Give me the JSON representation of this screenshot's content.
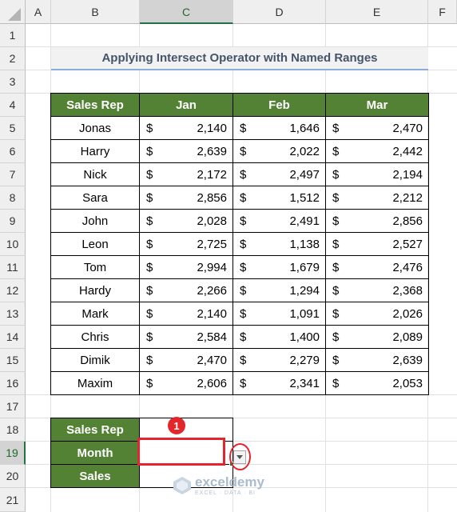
{
  "columns": [
    "A",
    "B",
    "C",
    "D",
    "E",
    "F"
  ],
  "selected_column": "C",
  "rows": [
    "1",
    "2",
    "3",
    "4",
    "5",
    "6",
    "7",
    "8",
    "9",
    "10",
    "11",
    "12",
    "13",
    "14",
    "15",
    "16",
    "17",
    "18",
    "19",
    "20",
    "21"
  ],
  "selected_row": "19",
  "title": "Applying Intersect Operator with Named Ranges",
  "table": {
    "headers": [
      "Sales Rep",
      "Jan",
      "Feb",
      "Mar"
    ],
    "currency": "$",
    "rows": [
      {
        "name": "Jonas",
        "jan": "2,140",
        "feb": "1,646",
        "mar": "2,470"
      },
      {
        "name": "Harry",
        "jan": "2,639",
        "feb": "2,022",
        "mar": "2,442"
      },
      {
        "name": "Nick",
        "jan": "2,172",
        "feb": "2,497",
        "mar": "2,194"
      },
      {
        "name": "Sara",
        "jan": "2,856",
        "feb": "1,512",
        "mar": "2,212"
      },
      {
        "name": "John",
        "jan": "2,028",
        "feb": "2,491",
        "mar": "2,856"
      },
      {
        "name": "Leon",
        "jan": "2,725",
        "feb": "1,138",
        "mar": "2,527"
      },
      {
        "name": "Tom",
        "jan": "2,994",
        "feb": "1,679",
        "mar": "2,476"
      },
      {
        "name": "Hardy",
        "jan": "2,266",
        "feb": "1,294",
        "mar": "2,368"
      },
      {
        "name": "Mark",
        "jan": "2,140",
        "feb": "1,091",
        "mar": "2,026"
      },
      {
        "name": "Chris",
        "jan": "2,584",
        "feb": "1,400",
        "mar": "2,089"
      },
      {
        "name": "Dimik",
        "jan": "2,470",
        "feb": "2,279",
        "mar": "2,639"
      },
      {
        "name": "Maxim",
        "jan": "2,606",
        "feb": "2,341",
        "mar": "2,053"
      }
    ]
  },
  "lookup": {
    "sales_rep_label": "Sales Rep",
    "month_label": "Month",
    "sales_label": "Sales",
    "sales_rep_value": "",
    "month_value": "",
    "sales_value": ""
  },
  "annotation": {
    "step_number": "1"
  },
  "watermark": {
    "brand": "exceldemy",
    "tagline": "EXCEL · DATA · BI"
  },
  "colors": {
    "header_green": "#548235",
    "highlight_red": "#e3262b",
    "title_underline": "#8ea9db"
  }
}
